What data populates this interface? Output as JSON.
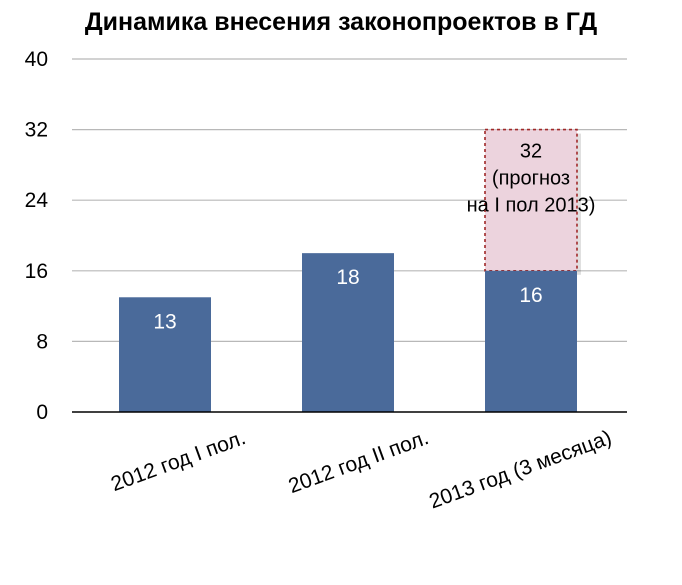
{
  "colors": {
    "bar": "#4a6a9a",
    "forecast_fill": "#ecd3dd",
    "forecast_border": "#a02828",
    "grid": "#b8b8b8"
  },
  "chart_data": {
    "type": "bar",
    "title": "Динамика внесения законопроектов в ГД",
    "xlabel": "",
    "ylabel": "",
    "ylim": [
      0,
      40
    ],
    "yticks": [
      "0",
      "8",
      "16",
      "24",
      "32",
      "40"
    ],
    "grid": true,
    "categories": [
      "2012 год I пол.",
      "2012 год II пол.",
      "2013 год (3 месяца)"
    ],
    "values": [
      13,
      18,
      16
    ],
    "data_labels": [
      "13",
      "18",
      "16"
    ],
    "forecast": {
      "category": "2013 год (3 месяца)",
      "value": 32,
      "label_lines": [
        "32",
        "(прогноз",
        "на I пол 2013)"
      ]
    }
  }
}
